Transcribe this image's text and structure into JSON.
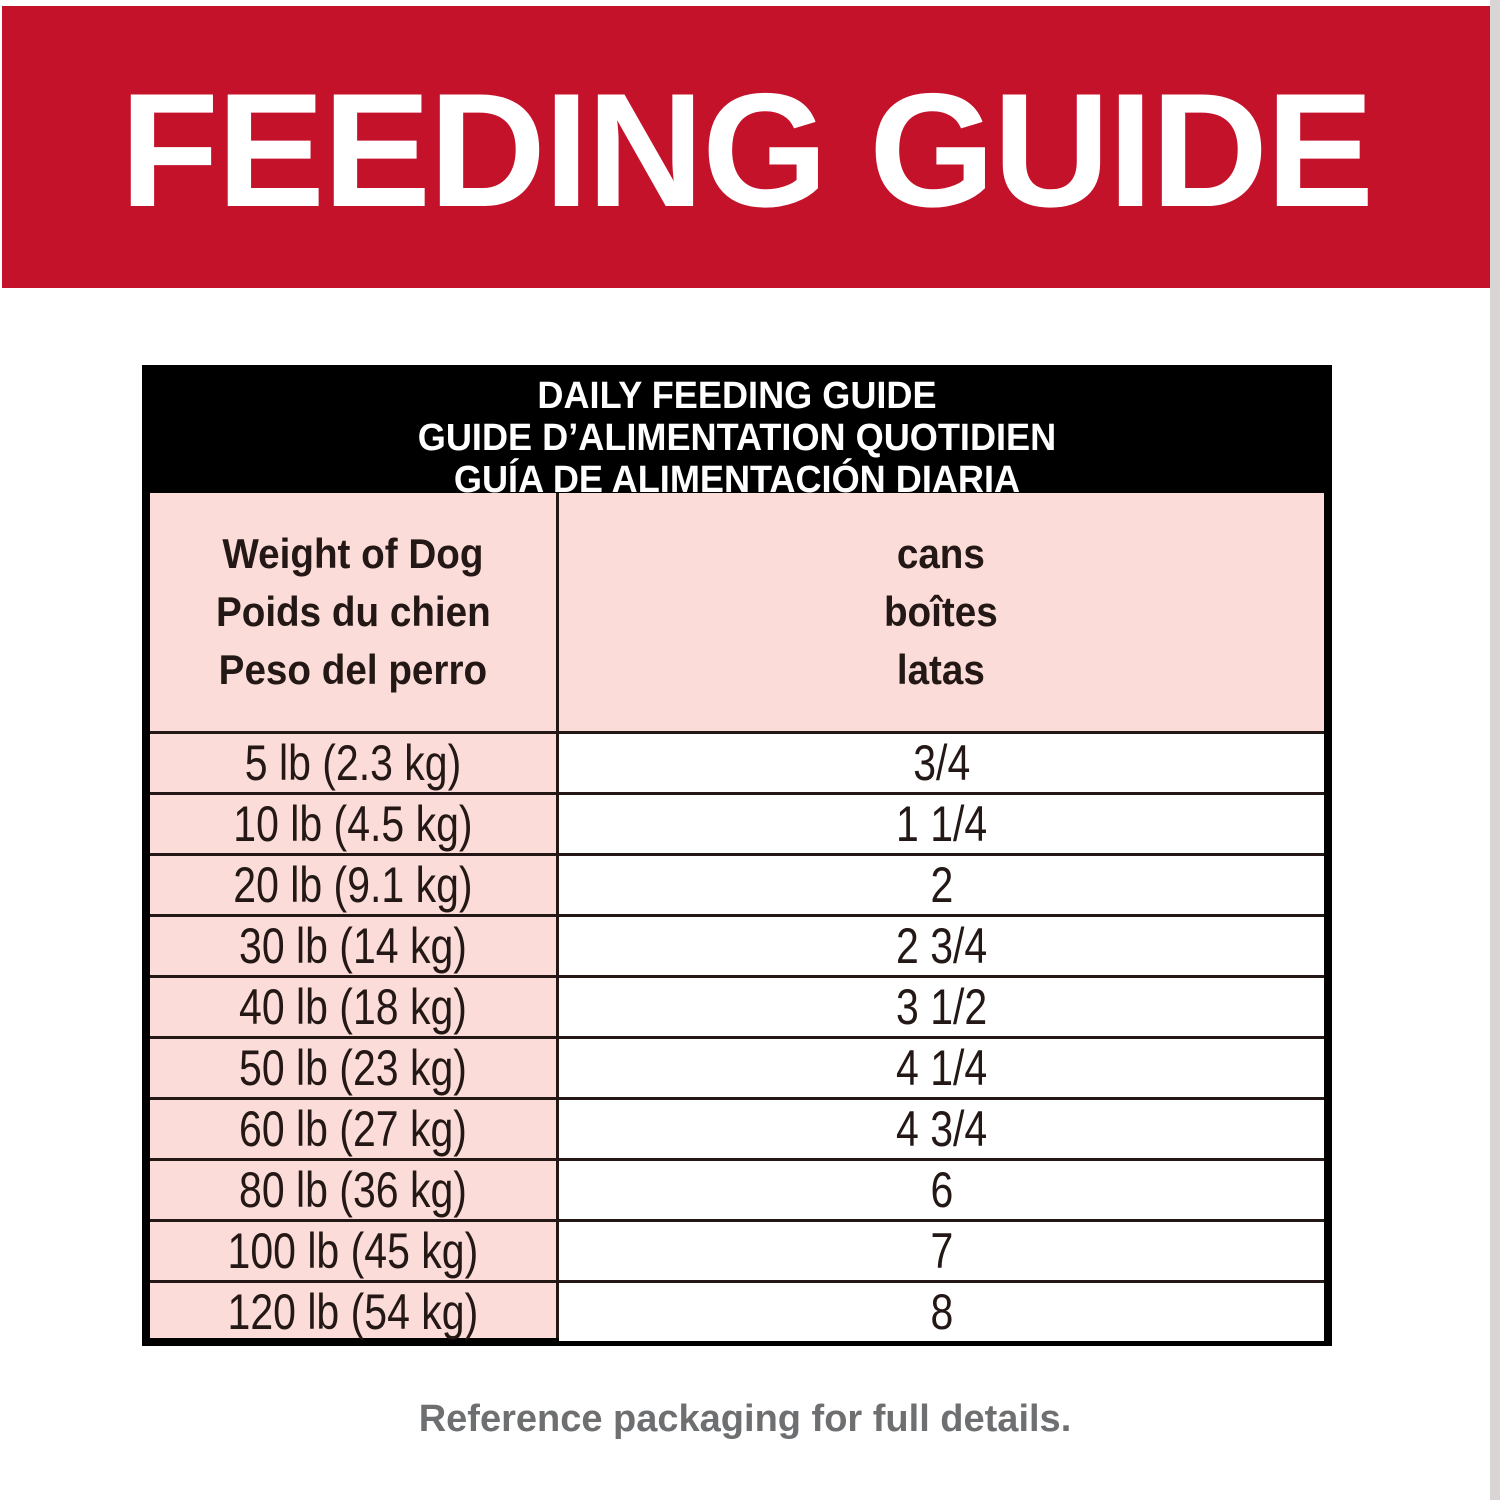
{
  "banner": {
    "title": "FEEDING GUIDE"
  },
  "table": {
    "title_lines": [
      "DAILY FEEDING GUIDE",
      "GUIDE D’ALIMENTATION QUOTIDIEN",
      "GUÍA DE ALIMENTACIÓN DIARIA"
    ],
    "col1_header": [
      "Weight of Dog",
      "Poids du chien",
      "Peso del perro"
    ],
    "col2_header": [
      "cans",
      "boîtes",
      "latas"
    ],
    "rows": [
      {
        "weight": "5 lb (2.3 kg)",
        "cans": "3/4"
      },
      {
        "weight": "10 lb (4.5 kg)",
        "cans": "1 1/4"
      },
      {
        "weight": "20 lb (9.1 kg)",
        "cans": "2"
      },
      {
        "weight": "30 lb (14 kg)",
        "cans": "2 3/4"
      },
      {
        "weight": "40 lb (18 kg)",
        "cans": "3 1/2"
      },
      {
        "weight": "50 lb (23 kg)",
        "cans": "4 1/4"
      },
      {
        "weight": "60 lb (27 kg)",
        "cans": "4 3/4"
      },
      {
        "weight": "80 lb (36 kg)",
        "cans": "6"
      },
      {
        "weight": "100 lb (45 kg)",
        "cans": "7"
      },
      {
        "weight": "120 lb (54 kg)",
        "cans": "8"
      }
    ]
  },
  "footer": {
    "note": "Reference packaging for full details."
  },
  "colors": {
    "banner": "#c5122b",
    "pink": "#fbdcd8",
    "text": "#231815",
    "footer": "#6d6f71"
  }
}
